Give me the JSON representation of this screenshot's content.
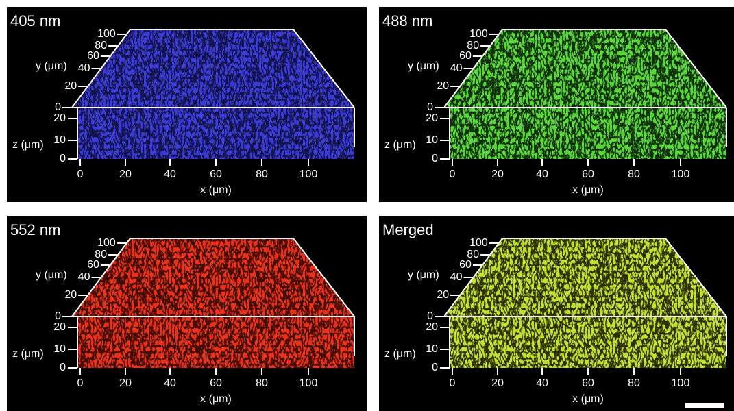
{
  "panels": [
    {
      "label": "405 nm",
      "y_axis_label": "y (μm)",
      "z_axis_label": "z (μm)",
      "x_axis_label": "x (μm)",
      "y_ticks": [
        "100",
        "80",
        "60",
        "40",
        "20",
        "0"
      ],
      "z_ticks": [
        "20",
        "10",
        "0"
      ],
      "x_ticks": [
        "0",
        "20",
        "40",
        "60",
        "80",
        "100"
      ]
    },
    {
      "label": "488 nm",
      "y_axis_label": "y (μm)",
      "z_axis_label": "z (μm)",
      "x_axis_label": "x (μm)",
      "y_ticks": [
        "100",
        "80",
        "60",
        "40",
        "20",
        "0"
      ],
      "z_ticks": [
        "20",
        "10",
        "0"
      ],
      "x_ticks": [
        "0",
        "20",
        "40",
        "60",
        "80",
        "100"
      ]
    },
    {
      "label": "552 nm",
      "y_axis_label": "y (μm)",
      "z_axis_label": "z (μm)",
      "x_axis_label": "x (μm)",
      "y_ticks": [
        "100",
        "80",
        "60",
        "40",
        "20",
        "0"
      ],
      "z_ticks": [
        "20",
        "10",
        "0"
      ],
      "x_ticks": [
        "0",
        "20",
        "40",
        "60",
        "80",
        "100"
      ]
    },
    {
      "label": "Merged",
      "y_axis_label": "y (μm)",
      "z_axis_label": "z (μm)",
      "x_axis_label": "x (μm)",
      "y_ticks": [
        "100",
        "80",
        "60",
        "40",
        "20",
        "0"
      ],
      "z_ticks": [
        "20",
        "10",
        "0"
      ],
      "x_ticks": [
        "0",
        "20",
        "40",
        "60",
        "80",
        "100"
      ]
    }
  ]
}
